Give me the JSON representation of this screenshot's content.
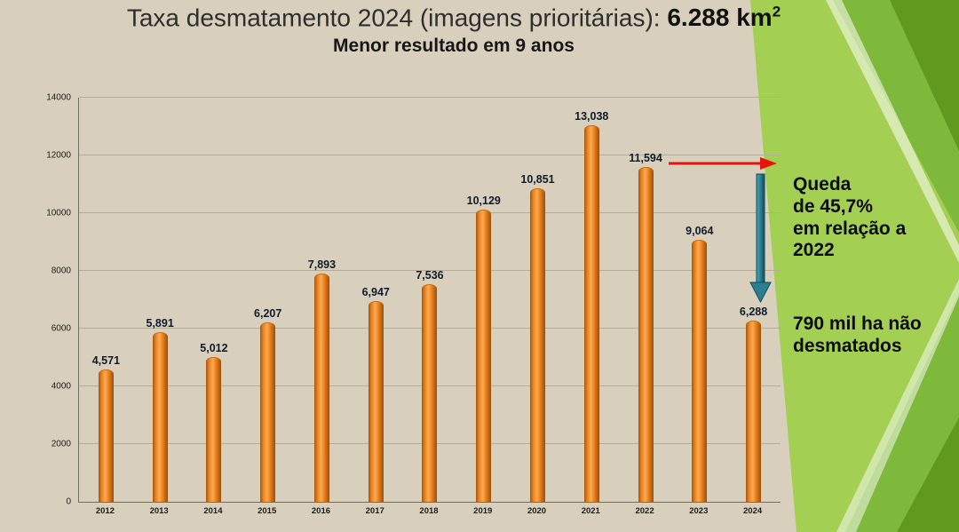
{
  "header": {
    "title_prefix": "Taxa desmatamento 2024 (imagens prioritárias): ",
    "title_value": "6.288 km",
    "title_superscript": "2",
    "subtitle": "Menor resultado em 9 anos"
  },
  "chart_data": {
    "type": "bar",
    "title": "Taxa desmatamento 2024 (imagens prioritárias): 6.288 km²",
    "subtitle": "Menor resultado em 9 anos",
    "categories": [
      "2012",
      "2013",
      "2014",
      "2015",
      "2016",
      "2017",
      "2018",
      "2019",
      "2020",
      "2021",
      "2022",
      "2023",
      "2024"
    ],
    "values": [
      4571,
      5891,
      5012,
      6207,
      7893,
      6947,
      7536,
      10129,
      10851,
      13038,
      11594,
      9064,
      6288
    ],
    "value_labels": [
      "4,571",
      "5,891",
      "5,012",
      "6,207",
      "7,893",
      "6,947",
      "7,536",
      "10,129",
      "10,851",
      "13,038",
      "11,594",
      "9,064",
      "6,288"
    ],
    "xlabel": "",
    "ylabel": "",
    "ylim": [
      0,
      14000
    ],
    "ytick_step": 2000,
    "grid": true,
    "legend": "none",
    "bar_color": "#ef8822"
  },
  "annotations": {
    "queda": "Queda\nde 45,7%\nem relação a\n2022",
    "saved": "790 mil ha não\ndesmatados"
  },
  "colors": {
    "background": "#d8cfbc",
    "bar_orange": "#ef8822",
    "red_arrow": "#e8140c",
    "teal_arrow": "#2b7f90",
    "green_light": "#a3cf52",
    "green_mid": "#7fb93c",
    "green_dark": "#61991f"
  }
}
